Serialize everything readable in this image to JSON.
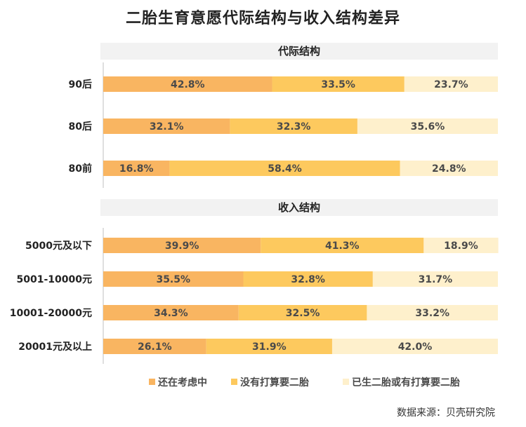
{
  "title": "二胎生育意愿代际结构与收入结构差异",
  "source": "数据来源：贝壳研究院",
  "colors": {
    "considering": "#F9B561",
    "no_plan": "#FDC95E",
    "has_second": "#FEF0CC",
    "section_bg": "#F2F2F2",
    "axis": "#BFBFBF"
  },
  "chart_data": [
    {
      "type": "bar",
      "orientation": "horizontal",
      "stacked": "percent",
      "title": "代际结构",
      "categories": [
        "90后",
        "80后",
        "80前"
      ],
      "series": [
        {
          "name": "还在考虑中",
          "values": [
            42.8,
            32.1,
            16.8
          ],
          "labels": [
            "42.8%",
            "32.1%",
            "16.8%"
          ]
        },
        {
          "name": "没有打算要二胎",
          "values": [
            33.5,
            32.3,
            58.4
          ],
          "labels": [
            "33.5%",
            "32.3%",
            "58.4%"
          ]
        },
        {
          "name": "已生二胎或有打算要二胎",
          "values": [
            23.7,
            35.6,
            24.8
          ],
          "labels": [
            "23.7%",
            "35.6%",
            "24.8%"
          ]
        }
      ],
      "xlim": [
        0,
        100
      ]
    },
    {
      "type": "bar",
      "orientation": "horizontal",
      "stacked": "percent",
      "title": "收入结构",
      "categories": [
        "5000元及以下",
        "5001-10000元",
        "10001-20000元",
        "20001元及以上"
      ],
      "series": [
        {
          "name": "还在考虑中",
          "values": [
            39.9,
            35.5,
            34.3,
            26.1
          ],
          "labels": [
            "39.9%",
            "35.5%",
            "34.3%",
            "26.1%"
          ]
        },
        {
          "name": "没有打算要二胎",
          "values": [
            41.3,
            32.8,
            32.5,
            31.9
          ],
          "labels": [
            "41.3%",
            "32.8%",
            "32.5%",
            "31.9%"
          ]
        },
        {
          "name": "已生二胎或有打算要二胎",
          "values": [
            18.9,
            31.7,
            33.2,
            42.0
          ],
          "labels": [
            "18.9%",
            "31.7%",
            "33.2%",
            "42.0%"
          ]
        }
      ],
      "xlim": [
        0,
        100
      ]
    }
  ],
  "legend": {
    "position": "bottom",
    "items": [
      {
        "label": "还在考虑中",
        "color_key": "considering"
      },
      {
        "label": "没有打算要二胎",
        "color_key": "no_plan"
      },
      {
        "label": "已生二胎或有打算要二胎",
        "color_key": "has_second"
      }
    ]
  }
}
